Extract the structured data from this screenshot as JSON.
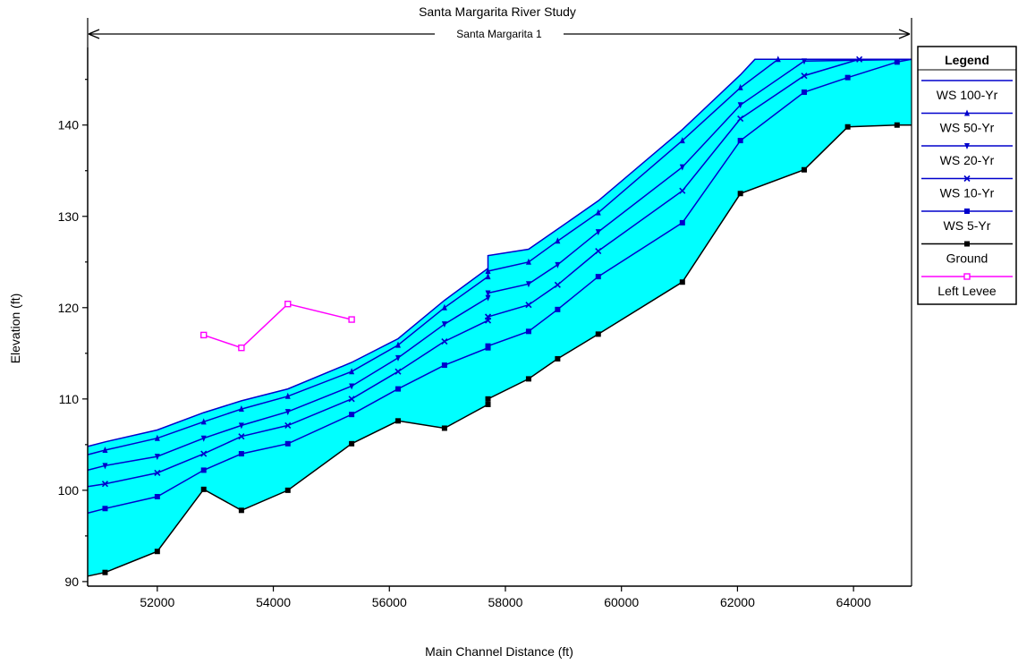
{
  "chart_data": {
    "type": "line",
    "title": "Santa Margarita River Study",
    "xlabel": "Main Channel Distance (ft)",
    "ylabel": "Elevation (ft)",
    "xlim": [
      50800,
      65000
    ],
    "ylim": [
      89.5,
      148.5
    ],
    "xticks": [
      52000,
      54000,
      56000,
      58000,
      60000,
      62000,
      64000
    ],
    "yticks": [
      90,
      100,
      110,
      120,
      130,
      140
    ],
    "grid": false,
    "legend_position": "right",
    "fill_color": "#00ffff",
    "reach_label": "Santa Margarita 1",
    "legend_title": "Legend",
    "series": [
      {
        "name": "WS  100-Yr",
        "color": "#0000cc",
        "marker": "none",
        "x": [
          50800,
          51100,
          52000,
          52800,
          53450,
          54250,
          55350,
          56150,
          56950,
          57700,
          57700,
          58400,
          58900,
          59600,
          61050,
          62050,
          62300,
          65000
        ],
        "y": [
          104.8,
          105.3,
          106.6,
          108.5,
          109.8,
          111.1,
          114.0,
          116.6,
          120.8,
          124.3,
          125.7,
          126.4,
          128.6,
          131.7,
          139.5,
          145.5,
          147.2,
          147.2
        ]
      },
      {
        "name": "WS  50-Yr",
        "color": "#0000cc",
        "marker": "triangle-up",
        "x": [
          50800,
          51100,
          52000,
          52800,
          53450,
          54250,
          55350,
          56150,
          56950,
          57700,
          57700,
          58400,
          58900,
          59600,
          61050,
          62050,
          62700,
          65000
        ],
        "y": [
          103.9,
          104.4,
          105.7,
          107.5,
          108.9,
          110.3,
          113.0,
          115.9,
          120.0,
          123.4,
          124.0,
          125.0,
          127.3,
          130.4,
          138.3,
          144.1,
          147.2,
          147.2
        ]
      },
      {
        "name": "WS  20-Yr",
        "color": "#0000cc",
        "marker": "triangle-down",
        "x": [
          50800,
          51100,
          52000,
          52800,
          53450,
          54250,
          55350,
          56150,
          56950,
          57700,
          57700,
          58400,
          58900,
          59600,
          61050,
          62050,
          63150,
          65000
        ],
        "y": [
          102.2,
          102.7,
          103.7,
          105.7,
          107.1,
          108.6,
          111.4,
          114.5,
          118.2,
          121.1,
          121.6,
          122.6,
          124.7,
          128.3,
          135.4,
          142.2,
          147.0,
          147.2
        ]
      },
      {
        "name": "WS  10-Yr",
        "color": "#0000cc",
        "marker": "x",
        "x": [
          50800,
          51100,
          52000,
          52800,
          53450,
          54250,
          55350,
          56150,
          56950,
          57700,
          57700,
          58400,
          58900,
          59600,
          61050,
          62050,
          63150,
          64100,
          65000
        ],
        "y": [
          100.4,
          100.7,
          101.9,
          104.0,
          105.9,
          107.1,
          110.0,
          113.0,
          116.3,
          118.6,
          119.0,
          120.3,
          122.5,
          126.2,
          132.8,
          140.7,
          145.4,
          147.2,
          147.2
        ]
      },
      {
        "name": "WS  5-Yr",
        "color": "#0000cc",
        "marker": "square",
        "x": [
          50800,
          51100,
          52000,
          52800,
          53450,
          54250,
          55350,
          56150,
          56950,
          57700,
          57700,
          58400,
          58900,
          59600,
          61050,
          62050,
          63150,
          63900,
          64750,
          65000
        ],
        "y": [
          97.5,
          98.0,
          99.3,
          102.2,
          104.0,
          105.1,
          108.3,
          111.1,
          113.7,
          115.6,
          115.8,
          117.4,
          119.8,
          123.4,
          129.3,
          138.3,
          143.6,
          145.2,
          146.9,
          147.2
        ]
      },
      {
        "name": "Ground",
        "color": "#000000",
        "marker": "square",
        "x": [
          50800,
          51100,
          52000,
          52800,
          53450,
          54250,
          55350,
          56150,
          56950,
          57700,
          57700,
          58400,
          58900,
          59600,
          61050,
          62050,
          63150,
          63900,
          64750,
          65000
        ],
        "y": [
          90.6,
          91.0,
          93.3,
          100.1,
          97.8,
          100.0,
          105.1,
          107.6,
          106.8,
          109.4,
          110.0,
          112.2,
          114.4,
          117.1,
          122.8,
          132.5,
          135.1,
          139.8,
          140.0,
          140.0
        ]
      },
      {
        "name": "Left Levee",
        "color": "#ff00ff",
        "marker": "open-square",
        "x": [
          52800,
          53450,
          54250,
          55350
        ],
        "y": [
          117.0,
          115.6,
          120.4,
          118.7
        ]
      }
    ]
  }
}
